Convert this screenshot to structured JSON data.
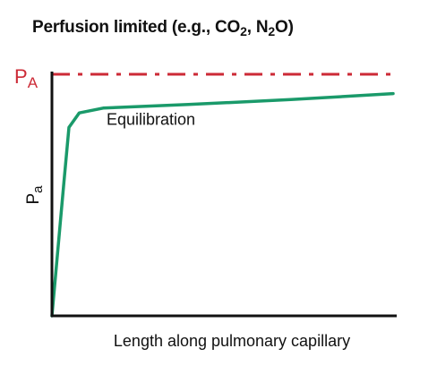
{
  "chart_data": {
    "type": "line",
    "title": {
      "prefix": "Perfusion limited (e.g., CO",
      "sub1": "2",
      "middle": ", N",
      "sub2": "2",
      "suffix": "O)"
    },
    "xlabel": "Length along pulmonary capillary",
    "ylabel": {
      "base": "P",
      "sub": "a"
    },
    "reference_line": {
      "label_base": "P",
      "label_sub": "A",
      "style": "dash-dot",
      "color": "#cc2a36",
      "y": 100
    },
    "series": [
      {
        "color": "#1a9a6a",
        "x": [
          0,
          3.5,
          5,
          8,
          15,
          40,
          70,
          100
        ],
        "y": [
          0,
          55,
          78,
          84,
          86,
          87.5,
          89.5,
          92
        ]
      }
    ],
    "annotations": [
      {
        "text": "Equilibration",
        "x": 16,
        "y": 79
      }
    ],
    "xlim": [
      0,
      100
    ],
    "ylim": [
      0,
      100
    ],
    "grid": false,
    "axis_color": "#111111"
  }
}
